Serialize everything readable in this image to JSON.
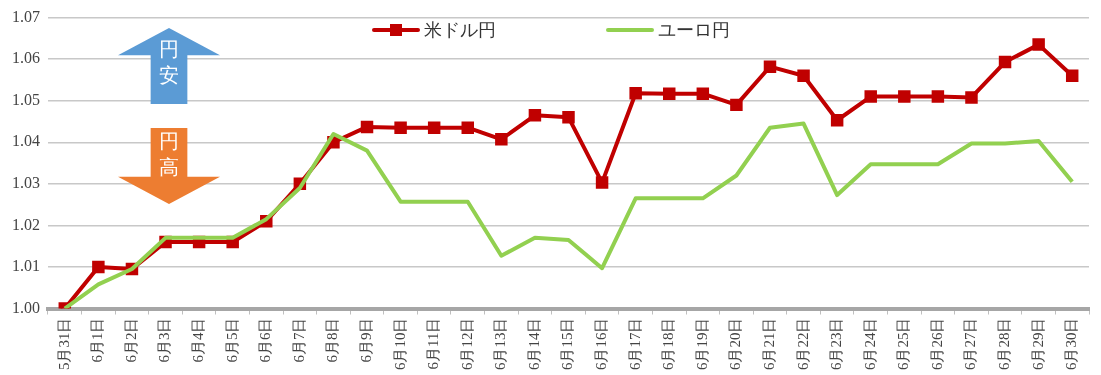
{
  "chart_data": {
    "type": "line",
    "categories": [
      "5月31日",
      "6月1日",
      "6月2日",
      "6月3日",
      "6月4日",
      "6月5日",
      "6月6日",
      "6月7日",
      "6月8日",
      "6月9日",
      "6月10日",
      "6月11日",
      "6月12日",
      "6月13日",
      "6月14日",
      "6月15日",
      "6月16日",
      "6月17日",
      "6月18日",
      "6月19日",
      "6月20日",
      "6月21日",
      "6月22日",
      "6月23日",
      "6月24日",
      "6月25日",
      "6月26日",
      "6月27日",
      "6月28日",
      "6月29日",
      "6月30日"
    ],
    "series": [
      {
        "name": "米ドル円",
        "color": "#c00000",
        "marker": "square",
        "values": [
          1.0,
          1.01,
          1.0095,
          1.016,
          1.016,
          1.016,
          1.021,
          1.03,
          1.04,
          1.0437,
          1.0435,
          1.0435,
          1.0435,
          1.0407,
          1.0465,
          1.046,
          1.0303,
          1.0518,
          1.0517,
          1.0517,
          1.049,
          1.0582,
          1.056,
          1.0453,
          1.051,
          1.051,
          1.051,
          1.0508,
          1.0593,
          1.0635,
          1.056
        ]
      },
      {
        "name": "ユーロ円",
        "color": "#92d050",
        "marker": "none",
        "values": [
          1.0,
          1.0058,
          1.0095,
          1.017,
          1.017,
          1.017,
          1.0215,
          1.029,
          1.042,
          1.038,
          1.0257,
          1.0257,
          1.0257,
          1.0127,
          1.017,
          1.0165,
          1.0097,
          1.0265,
          1.0265,
          1.0265,
          1.032,
          1.0435,
          1.0445,
          1.0273,
          1.0347,
          1.0347,
          1.0347,
          1.0397,
          1.0397,
          1.0403,
          1.0305
        ]
      }
    ],
    "ylim": [
      1.0,
      1.07
    ],
    "yticks": [
      {
        "value": 1.0,
        "label": "1.00"
      },
      1.01,
      1.02,
      1.03,
      1.04,
      1.05,
      1.06,
      1.07
    ],
    "grid": "y",
    "legend": "top",
    "annotations": [
      "円安",
      "円高"
    ]
  }
}
